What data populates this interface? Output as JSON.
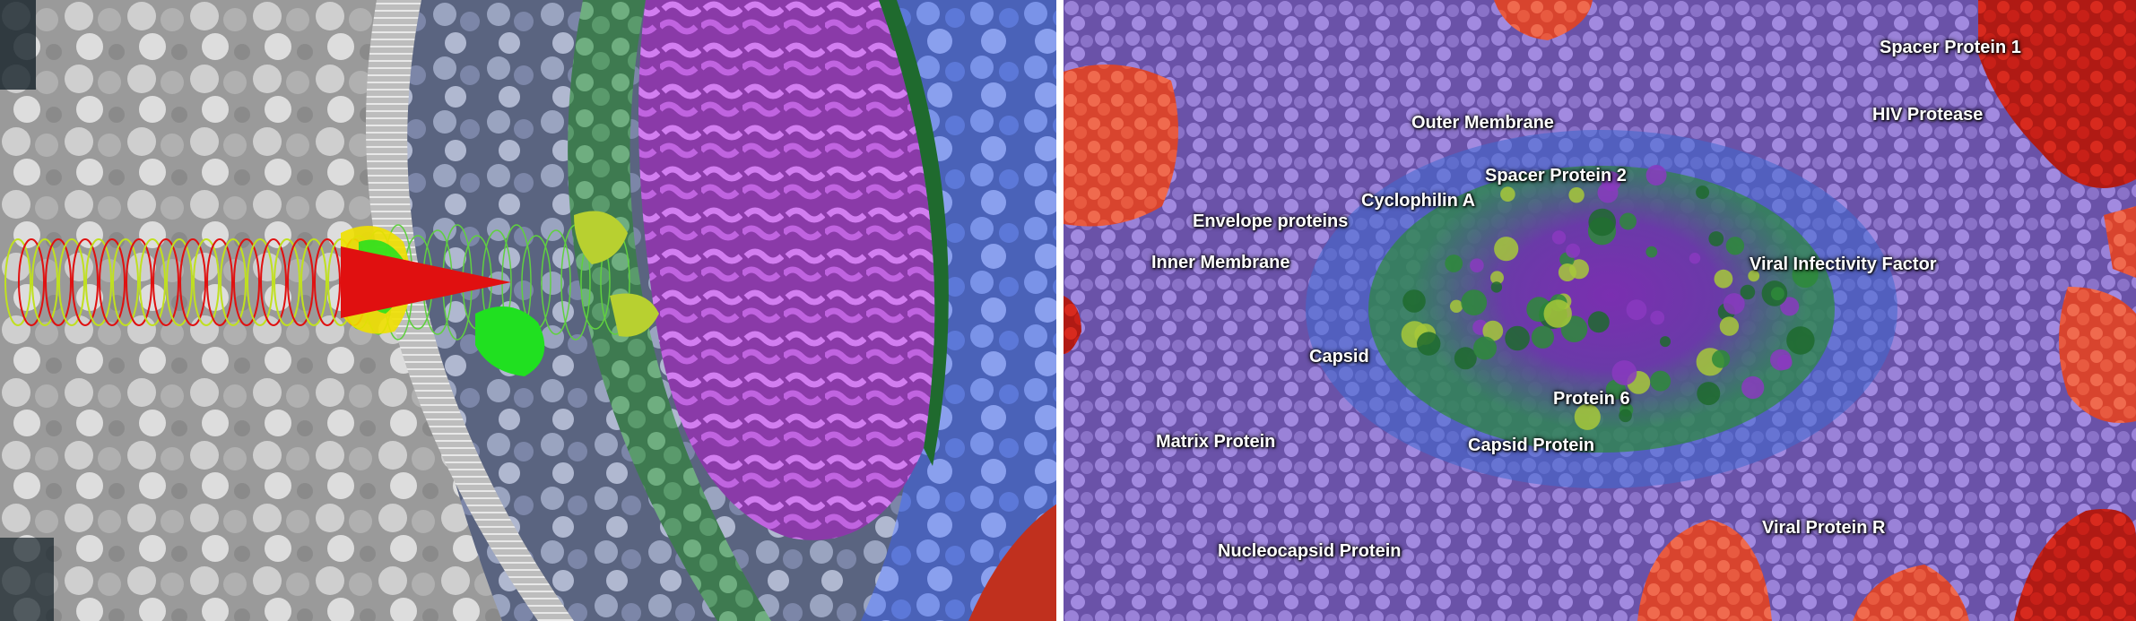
{
  "colors": {
    "background_dark": "#152229",
    "host_grey": "#b9b9b9",
    "membrane_white": "#d8d8d8",
    "matrix_green": "#5f9a6f",
    "capsid_magenta": "#b45fd0",
    "outer_blue": "#5f7ee0",
    "envelope_red": "#e0402c",
    "virion_purple": "#8a6fc8",
    "core_violet": "#7a2fb0",
    "capsid_green": "#2e8a3a",
    "yellow_green": "#a7c83a",
    "highlight_red": "#e01010",
    "highlight_yellow": "#f0e000",
    "highlight_green": "#20e020"
  },
  "left_panel": {
    "description_icon": "hiv-cell-fusion-cross-section"
  },
  "right_panel": {
    "labels": [
      {
        "id": "spacer-protein-1",
        "text": "Spacer Protein 1"
      },
      {
        "id": "hiv-protease",
        "text": "HIV Protease"
      },
      {
        "id": "outer-membrane",
        "text": "Outer Membrane"
      },
      {
        "id": "spacer-protein-2",
        "text": "Spacer Protein 2"
      },
      {
        "id": "cyclophilin-a",
        "text": "Cyclophilin A"
      },
      {
        "id": "envelope-proteins",
        "text": "Envelope proteins"
      },
      {
        "id": "inner-membrane",
        "text": "Inner Membrane"
      },
      {
        "id": "viral-infectivity-factor",
        "text": "Viral Infectivity Factor"
      },
      {
        "id": "capsid",
        "text": "Capsid"
      },
      {
        "id": "protein-6",
        "text": "Protein 6"
      },
      {
        "id": "matrix-protein",
        "text": "Matrix Protein"
      },
      {
        "id": "capsid-protein",
        "text": "Capsid Protein"
      },
      {
        "id": "viral-protein-r",
        "text": "Viral Protein R"
      },
      {
        "id": "nucleocapsid-protein",
        "text": "Nucleocapsid Protein"
      }
    ]
  }
}
